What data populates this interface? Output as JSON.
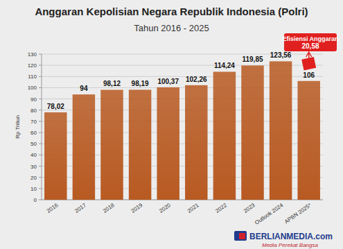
{
  "chart_data": {
    "type": "bar",
    "title": "Anggaran Kepolisian Negara Republik Indonesia (Polri)",
    "subtitle": "Tahun 2016 - 2025",
    "y_label": "Rp Triliun",
    "categories": [
      "2016",
      "2017",
      "2018",
      "2019",
      "2020",
      "2021",
      "2022",
      "2023",
      "Outlook 2024",
      "APBN 2025*"
    ],
    "values": [
      78.02,
      94,
      98.12,
      98.19,
      100.37,
      102.26,
      114.24,
      119.85,
      123.56,
      106
    ],
    "value_labels": [
      "78,02",
      "94",
      "98,12",
      "98,19",
      "100,37",
      "102,26",
      "114,24",
      "119,85",
      "123,56",
      "106"
    ],
    "color": "#b85a22",
    "ylim": [
      0,
      130
    ],
    "yticks": [
      0,
      10,
      20,
      30,
      40,
      50,
      60,
      70,
      80,
      90,
      100,
      110,
      120,
      130
    ],
    "grid": true,
    "data_labels": true,
    "annotations": [
      {
        "text": "Efisiensi Anggaran",
        "label": "20,58",
        "value": 20.58
      }
    ],
    "watermark": {
      "brand": "BERLIANMEDIA.com",
      "tagline": "Media Perekat Bangsa"
    }
  }
}
